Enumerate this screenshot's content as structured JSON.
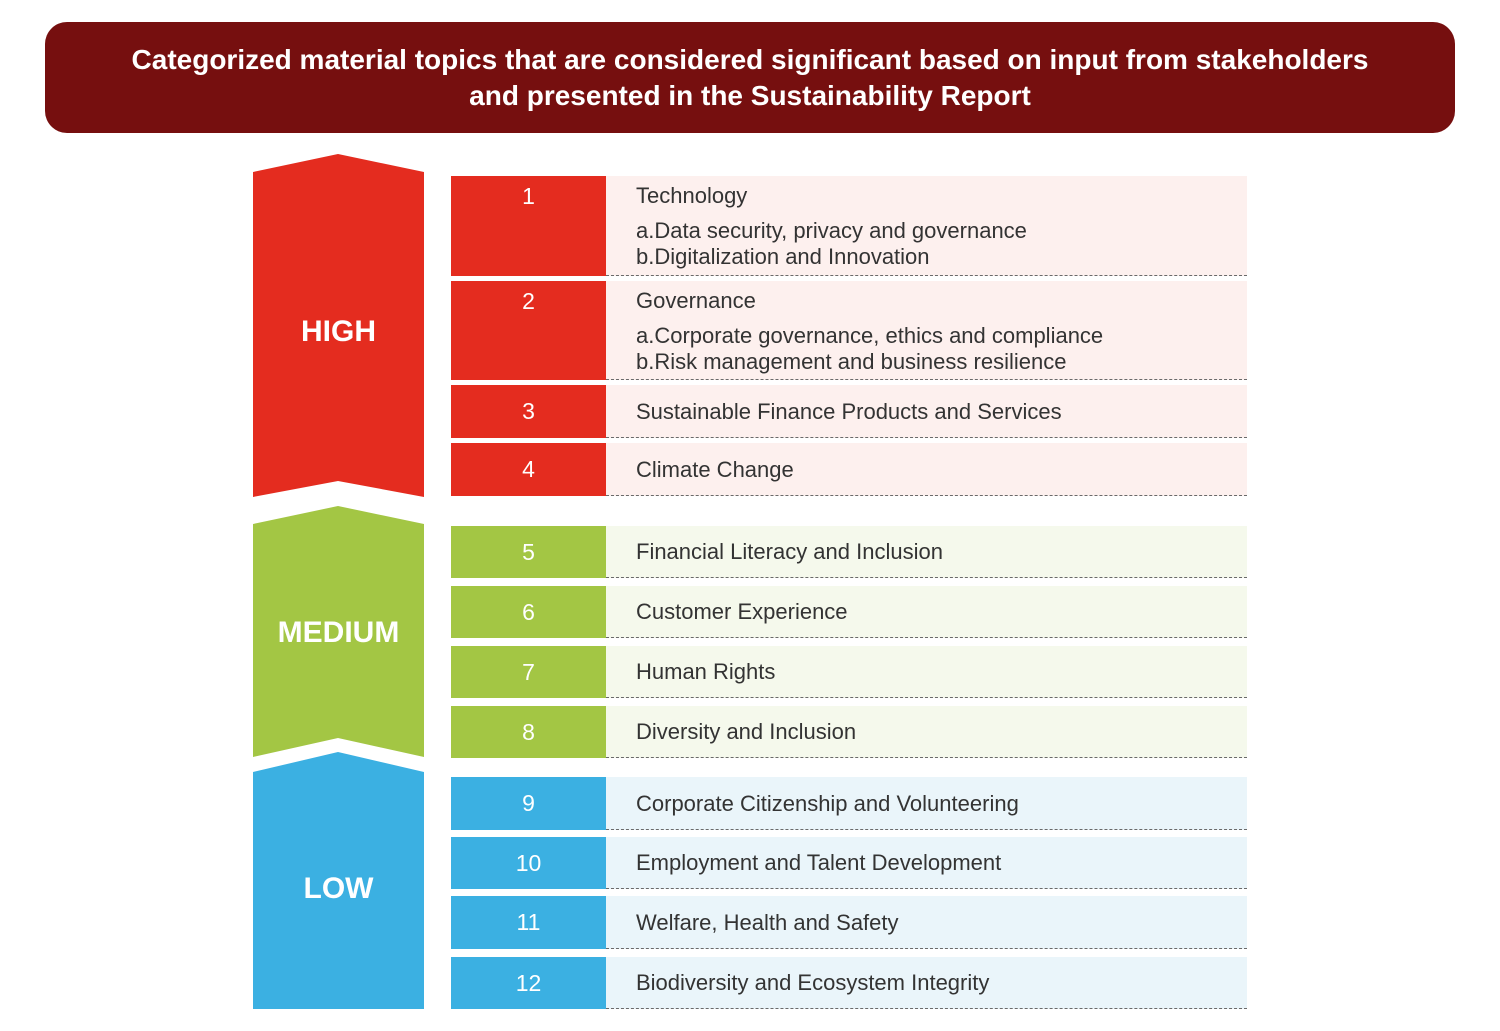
{
  "title": "Categorized material topics that are considered significant based on input from stakeholders and presented in the Sustainability Report",
  "colors": {
    "banner": "#760f0f",
    "high": "#e42c1f",
    "high_bg": "#fdf0ee",
    "medium": "#a3c644",
    "medium_bg": "#f5f9ec",
    "low": "#3bb0e2",
    "low_bg": "#eaf5fa"
  },
  "levels": [
    {
      "label": "HIGH",
      "topics": [
        {
          "number": "1",
          "title": "Technology",
          "subtopics": [
            "a.Data security, privacy and governance",
            "b.Digitalization and Innovation"
          ]
        },
        {
          "number": "2",
          "title": "Governance",
          "subtopics": [
            "a.Corporate governance, ethics and compliance",
            "b.Risk management and business resilience"
          ]
        },
        {
          "number": "3",
          "title": "Sustainable Finance Products and Services"
        },
        {
          "number": "4",
          "title": "Climate Change"
        }
      ]
    },
    {
      "label": "MEDIUM",
      "topics": [
        {
          "number": "5",
          "title": "Financial Literacy and Inclusion"
        },
        {
          "number": "6",
          "title": "Customer Experience"
        },
        {
          "number": "7",
          "title": "Human Rights"
        },
        {
          "number": "8",
          "title": "Diversity and Inclusion"
        }
      ]
    },
    {
      "label": "LOW",
      "topics": [
        {
          "number": "9",
          "title": "Corporate Citizenship and Volunteering"
        },
        {
          "number": "10",
          "title": "Employment and Talent Development"
        },
        {
          "number": "11",
          "title": "Welfare, Health and Safety"
        },
        {
          "number": "12",
          "title": "Biodiversity and Ecosystem Integrity"
        }
      ]
    }
  ]
}
